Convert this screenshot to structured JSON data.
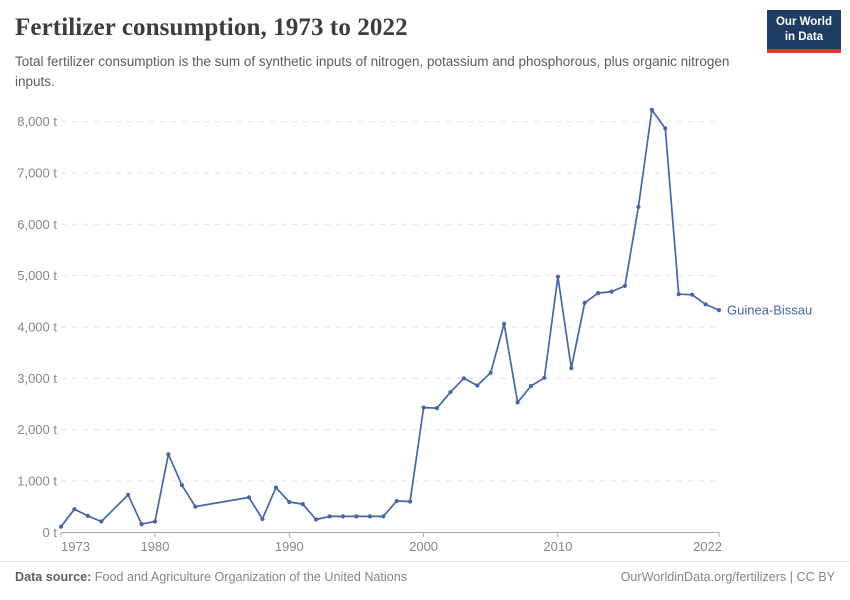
{
  "header": {
    "title": "Fertilizer consumption, 1973 to 2022",
    "subtitle": "Total fertilizer consumption is the sum of synthetic inputs of nitrogen, potassium and phosphorous, plus organic nitrogen inputs.",
    "logo": {
      "line1": "Our World",
      "line2": "in Data",
      "bg_color": "#1d3d63",
      "accent_color": "#dc392b"
    }
  },
  "chart_data": {
    "type": "line",
    "title": "Fertilizer consumption, 1973 to 2022",
    "unit": "t",
    "xlabel": "",
    "ylabel": "",
    "xlim": [
      1973,
      2022
    ],
    "ylim": [
      0,
      8000
    ],
    "grid": "dashed horizontal",
    "legend_position": "end-of-line label",
    "x_ticks": [
      "1973",
      "1980",
      "1990",
      "2000",
      "2010",
      "2022"
    ],
    "y_ticks": [
      0,
      1000,
      2000,
      3000,
      4000,
      5000,
      6000,
      7000,
      8000
    ],
    "y_tick_labels": [
      "0 t",
      "1,000 t",
      "2,000 t",
      "3,000 t",
      "4,000 t",
      "5,000 t",
      "6,000 t",
      "7,000 t",
      "8,000 t"
    ],
    "series": [
      {
        "name": "Guinea-Bissau",
        "color": "#4766a4",
        "note": "no data for 1977 and 1984-1986; line interpolated across gaps",
        "points": [
          [
            1973,
            110
          ],
          [
            1974,
            450
          ],
          [
            1975,
            320
          ],
          [
            1976,
            210
          ],
          [
            1978,
            730
          ],
          [
            1979,
            160
          ],
          [
            1980,
            210
          ],
          [
            1981,
            1520
          ],
          [
            1982,
            920
          ],
          [
            1983,
            500
          ],
          [
            1987,
            680
          ],
          [
            1988,
            260
          ],
          [
            1989,
            870
          ],
          [
            1990,
            590
          ],
          [
            1991,
            550
          ],
          [
            1992,
            250
          ],
          [
            1993,
            310
          ],
          [
            1994,
            310
          ],
          [
            1995,
            310
          ],
          [
            1996,
            310
          ],
          [
            1997,
            310
          ],
          [
            1998,
            610
          ],
          [
            1999,
            600
          ],
          [
            2000,
            2430
          ],
          [
            2001,
            2420
          ],
          [
            2002,
            2730
          ],
          [
            2003,
            3000
          ],
          [
            2004,
            2860
          ],
          [
            2005,
            3110
          ],
          [
            2006,
            4060
          ],
          [
            2007,
            2530
          ],
          [
            2008,
            2850
          ],
          [
            2009,
            3010
          ],
          [
            2010,
            4980
          ],
          [
            2011,
            3200
          ],
          [
            2012,
            4470
          ],
          [
            2013,
            4660
          ],
          [
            2014,
            4690
          ],
          [
            2015,
            4800
          ],
          [
            2016,
            6340
          ],
          [
            2017,
            8230
          ],
          [
            2018,
            7870
          ],
          [
            2019,
            4640
          ],
          [
            2020,
            4630
          ],
          [
            2021,
            4440
          ],
          [
            2022,
            4330
          ]
        ]
      }
    ]
  },
  "footer": {
    "datasource_label": "Data source:",
    "datasource_value": " Food and Agriculture Organization of the United Nations",
    "link": "OurWorldinData.org/fertilizers | CC BY"
  }
}
